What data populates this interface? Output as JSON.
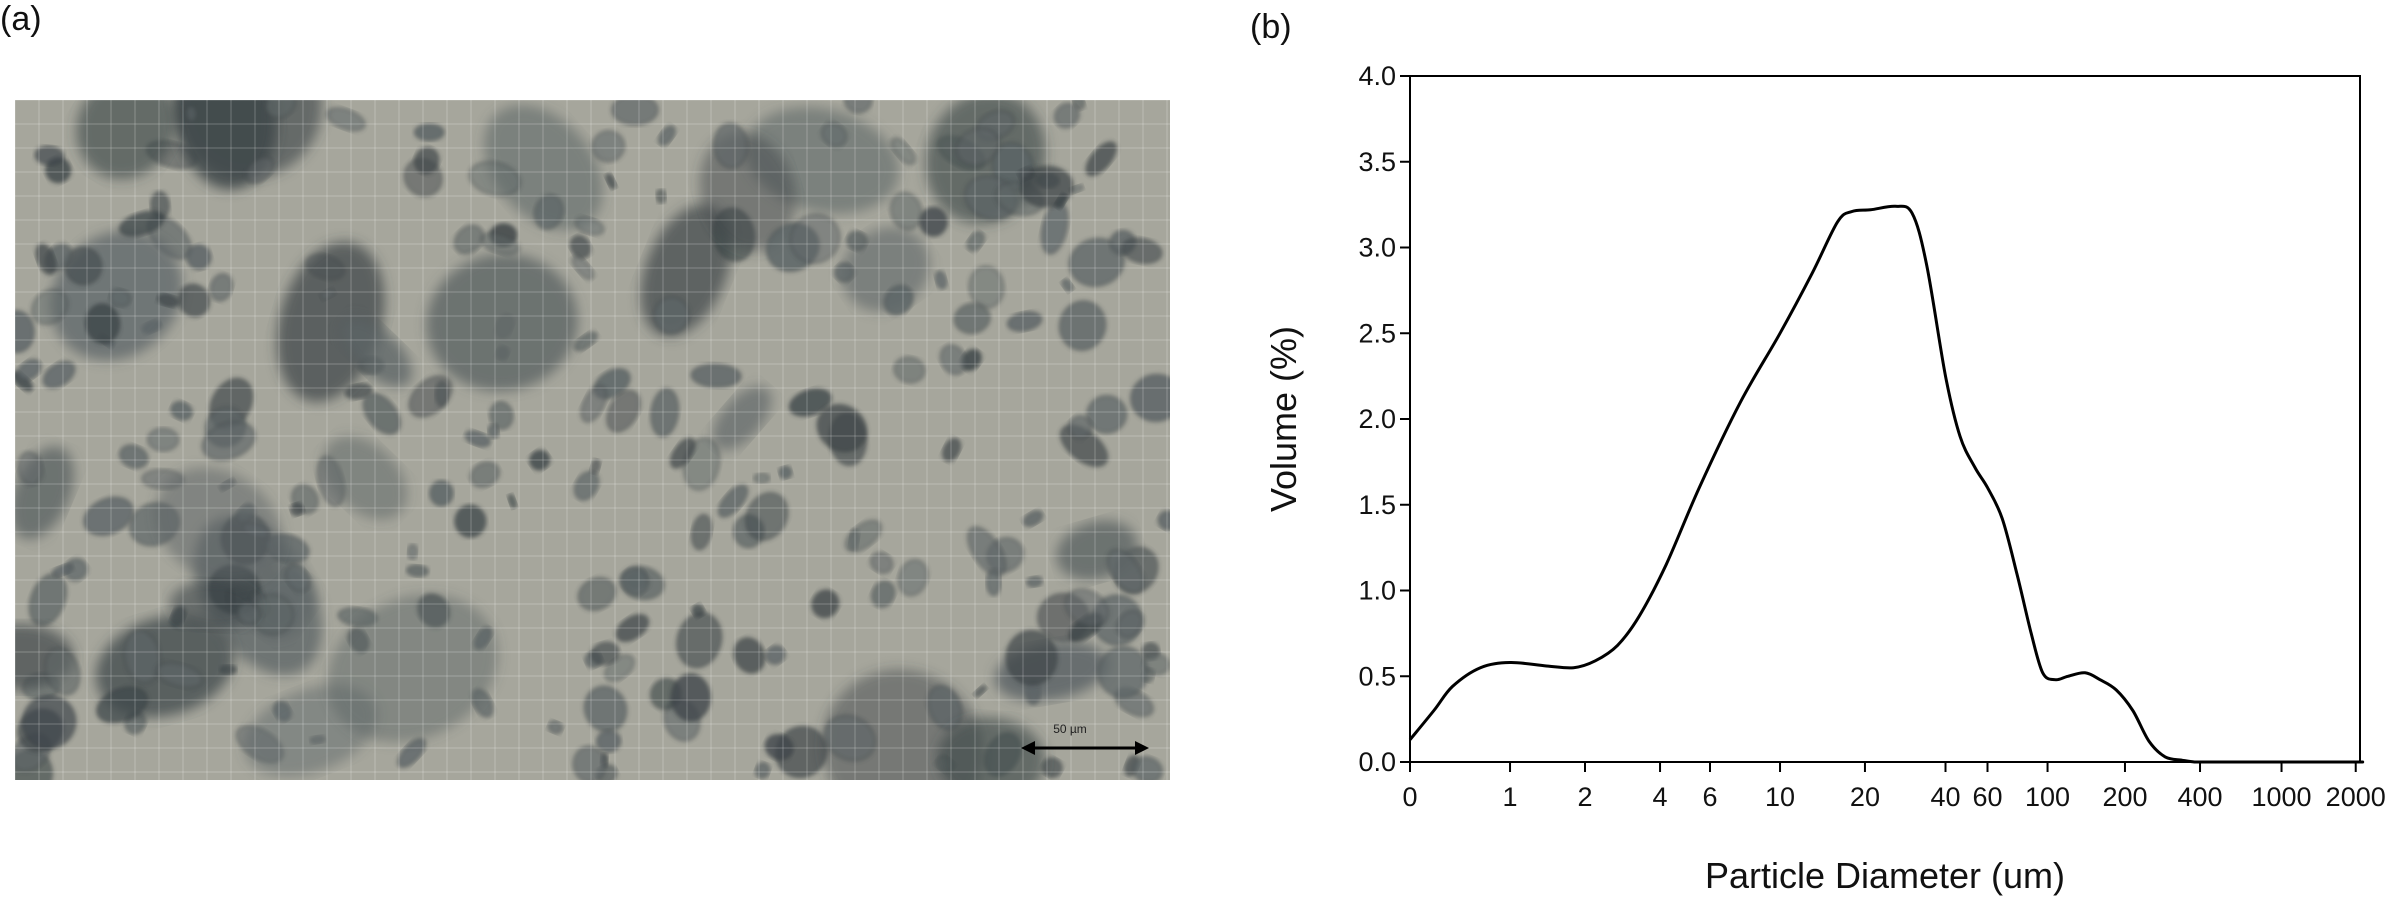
{
  "panels": {
    "a_label": "(a)",
    "b_label": "(b)"
  },
  "micrograph": {
    "scale_bar_text": "50 µm",
    "colors": {
      "background": "#a6a69c",
      "particle": "#5c6466",
      "particle_dark": "#3e4649"
    }
  },
  "chart_data": {
    "type": "line",
    "title": "",
    "xlabel": "Particle Diameter (um)",
    "ylabel": "Volume (%)",
    "ylim": [
      0,
      4
    ],
    "y_ticks": [
      "0.0",
      "0.5",
      "1.0",
      "1.5",
      "2.0",
      "2.5",
      "3.0",
      "3.5",
      "4.0"
    ],
    "x_ticks": [
      "0",
      "1",
      "2",
      "4",
      "6",
      "10",
      "20",
      "40",
      "60",
      "100",
      "200",
      "400",
      "1000",
      "2000"
    ],
    "x_scale": "log",
    "grid": false,
    "legend": "none",
    "line_color": "#000000",
    "x": [
      0.3,
      0.4,
      0.5,
      0.7,
      1.0,
      1.4,
      1.8,
      2.2,
      2.7,
      3.3,
      4.2,
      5.5,
      7.5,
      10,
      13,
      16,
      18,
      21,
      26,
      30,
      34,
      40,
      46,
      53,
      60,
      68,
      77,
      87,
      96,
      107,
      120,
      140,
      160,
      185,
      215,
      250,
      290,
      340,
      380,
      430,
      500,
      1000,
      2000,
      2500
    ],
    "y": [
      0.13,
      0.3,
      0.44,
      0.55,
      0.58,
      0.56,
      0.55,
      0.59,
      0.68,
      0.85,
      1.15,
      1.6,
      2.1,
      2.5,
      2.85,
      3.15,
      3.21,
      3.22,
      3.24,
      3.2,
      2.9,
      2.25,
      1.9,
      1.72,
      1.6,
      1.42,
      1.1,
      0.75,
      0.52,
      0.48,
      0.5,
      0.52,
      0.48,
      0.42,
      0.3,
      0.12,
      0.03,
      0.01,
      0.0,
      0.0,
      0.0,
      0.0,
      0.0,
      0.0
    ]
  }
}
